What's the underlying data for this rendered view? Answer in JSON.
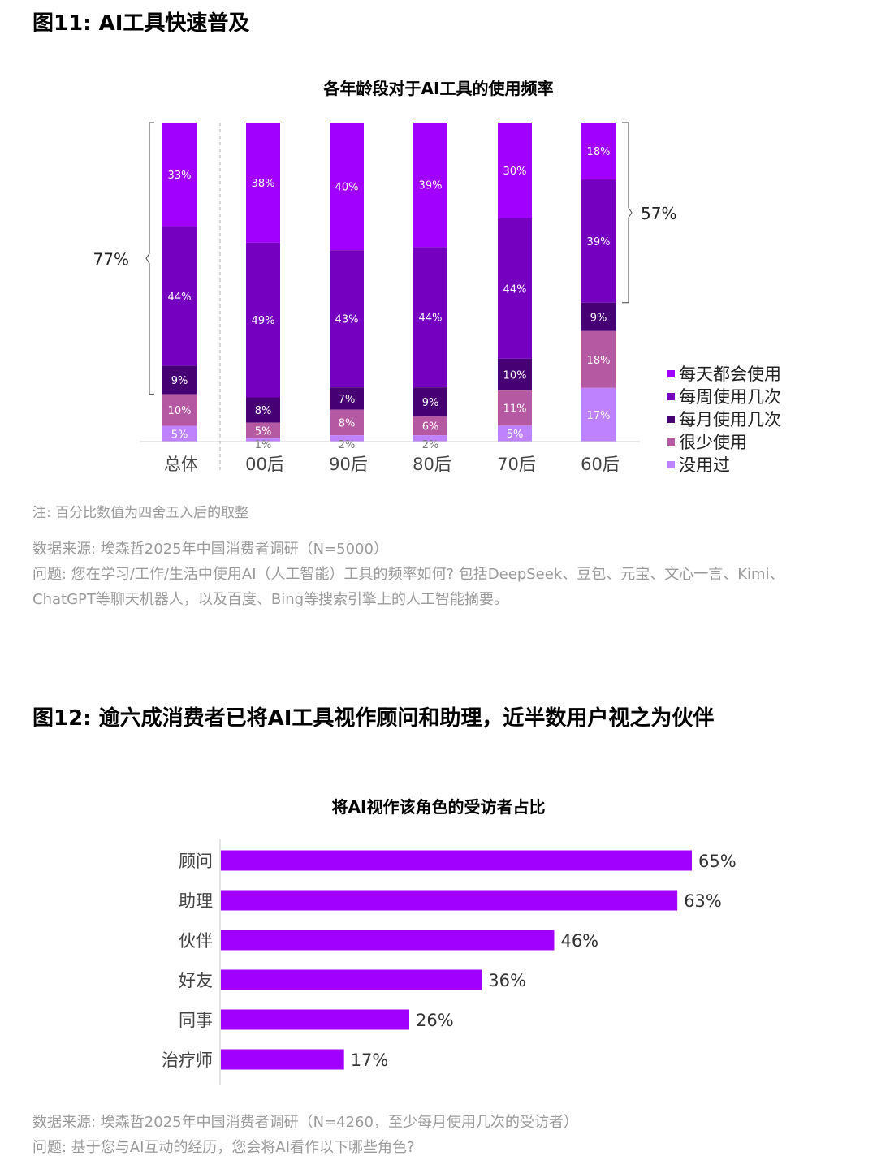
{
  "fig11": {
    "title": "图11: AI工具快速普及",
    "chart_title": "各年龄段对于AI工具的使用频率",
    "note": "注: 百分比数值为四舍五入后的取整",
    "source": "数据来源: 埃森哲2025年中国消费者调研（N=5000）",
    "question": "问题: 您在学习/工作/生活中使用AI（人工智能）工具的频率如何? 包括DeepSeek、豆包、元宝、文心一言、Kimi、",
    "question2": "ChatGPT等聊天机器人，以及百度、Bing等搜索引擎上的人工智能摘要。"
  },
  "fig12": {
    "title": "图12: 逾六成消费者已将AI工具视作顾问和助理，近半数用户视之为伙伴",
    "chart_title": "将AI视作该角色的受访者占比",
    "source": "数据来源: 埃森哲2025年中国消费者调研（N=4260，至少每月使用几次的受访者）",
    "question": "问题: 基于您与AI互动的经历，您会将AI看作以下哪些角色?"
  },
  "chart_data": [
    {
      "type": "bar",
      "stacked": true,
      "title": "各年龄段对于AI工具的使用频率",
      "categories": [
        "总体",
        "00后",
        "90后",
        "80后",
        "70后",
        "60后"
      ],
      "series": [
        {
          "name": "每天都会使用",
          "color": "#a100ff",
          "values": [
            33,
            38,
            40,
            39,
            30,
            18
          ]
        },
        {
          "name": "每周使用几次",
          "color": "#7500c0",
          "values": [
            44,
            49,
            43,
            44,
            44,
            39
          ]
        },
        {
          "name": "每月使用几次",
          "color": "#460073",
          "values": [
            9,
            8,
            7,
            9,
            10,
            9
          ]
        },
        {
          "name": "很少使用",
          "color": "#b659a3",
          "values": [
            10,
            5,
            8,
            6,
            11,
            18
          ]
        },
        {
          "name": "没用过",
          "color": "#be82ff",
          "values": [
            5,
            1,
            2,
            2,
            5,
            17
          ]
        }
      ],
      "labels": [
        [
          "33%",
          "44%",
          "9%",
          "10%",
          "5%"
        ],
        [
          "38%",
          "49%",
          "8%",
          "5%",
          "1%"
        ],
        [
          "40%",
          "43%",
          "7%",
          "8%",
          "2%"
        ],
        [
          "39%",
          "44%",
          "9%",
          "6%",
          "2%"
        ],
        [
          "30%",
          "44%",
          "10%",
          "11%",
          "5%"
        ],
        [
          "18%",
          "39%",
          "9%",
          "18%",
          "17%"
        ]
      ],
      "annotations": [
        {
          "category": "总体",
          "text": "77%",
          "side": "left"
        },
        {
          "category": "60后",
          "text": "57%",
          "side": "right"
        }
      ],
      "legend_position": "right",
      "grid": false
    },
    {
      "type": "bar",
      "orientation": "horizontal",
      "title": "将AI视作该角色的受访者占比",
      "color": "#a100ff",
      "categories": [
        "顾问",
        "助理",
        "伙伴",
        "好友",
        "同事",
        "治疗师"
      ],
      "values": [
        65,
        63,
        46,
        36,
        26,
        17
      ],
      "labels": [
        "65%",
        "63%",
        "46%",
        "36%",
        "26%",
        "17%"
      ],
      "xlim": [
        0,
        100
      ],
      "grid": false
    }
  ]
}
